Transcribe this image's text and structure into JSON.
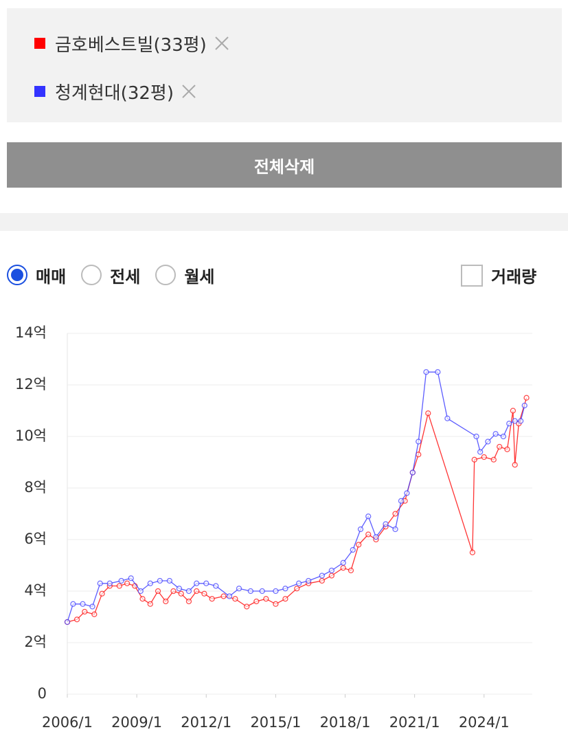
{
  "delete_all_button": "전체삭제",
  "trade_types": [
    {
      "label": "매매",
      "checked": true
    },
    {
      "label": "전세",
      "checked": false
    },
    {
      "label": "월세",
      "checked": false
    }
  ],
  "volume_checkbox": {
    "label": "거래량",
    "checked": false
  },
  "chart_data": {
    "type": "line",
    "xlim": [
      "2006-01",
      "2026-02"
    ],
    "xticks": [
      {
        "value": "2006-01",
        "label": "2006/1"
      },
      {
        "value": "2009-01",
        "label": "2009/1"
      },
      {
        "value": "2012-01",
        "label": "2012/1"
      },
      {
        "value": "2015-01",
        "label": "2015/1"
      },
      {
        "value": "2018-01",
        "label": "2018/1"
      },
      {
        "value": "2021-01",
        "label": "2021/1"
      },
      {
        "value": "2024-01",
        "label": "2024/1"
      }
    ],
    "ylim": [
      0,
      14
    ],
    "yticks": [
      0,
      {
        "value": 2,
        "label": "2억"
      },
      {
        "value": 4,
        "label": "4억"
      },
      {
        "value": 6,
        "label": "6억"
      },
      {
        "value": 8,
        "label": "8억"
      },
      {
        "value": 10,
        "label": "10억"
      },
      {
        "value": 12,
        "label": "12억"
      },
      {
        "value": 14,
        "label": "14억"
      }
    ],
    "grid": true,
    "series": [
      {
        "name": "금호베스트빌(33평)",
        "color": "#ff0000",
        "x": [
          "2006-01",
          "2006-06",
          "2006-10",
          "2007-03",
          "2007-07",
          "2007-11",
          "2008-04",
          "2008-08",
          "2008-12",
          "2009-04",
          "2009-08",
          "2009-12",
          "2010-04",
          "2010-08",
          "2010-12",
          "2011-04",
          "2011-08",
          "2011-12",
          "2012-04",
          "2012-10",
          "2013-04",
          "2013-10",
          "2014-03",
          "2014-08",
          "2015-01",
          "2015-06",
          "2015-12",
          "2016-06",
          "2017-01",
          "2017-06",
          "2017-12",
          "2018-04",
          "2018-08",
          "2019-01",
          "2019-05",
          "2019-10",
          "2020-03",
          "2020-08",
          "2020-12",
          "2021-03",
          "2021-08",
          "2023-07",
          "2023-08",
          "2024-01",
          "2024-06",
          "2024-09",
          "2025-01",
          "2025-04",
          "2025-05",
          "2025-07",
          "2025-11"
        ],
        "values": [
          2.8,
          2.9,
          3.2,
          3.1,
          3.9,
          4.2,
          4.2,
          4.3,
          4.2,
          3.7,
          3.5,
          4.0,
          3.6,
          4.0,
          3.9,
          3.6,
          4.0,
          3.9,
          3.7,
          3.8,
          3.7,
          3.4,
          3.6,
          3.7,
          3.5,
          3.7,
          4.1,
          4.3,
          4.4,
          4.6,
          4.9,
          4.8,
          5.8,
          6.2,
          6.0,
          6.5,
          7.0,
          7.5,
          8.6,
          9.3,
          10.9,
          5.5,
          9.1,
          9.2,
          9.1,
          9.6,
          9.5,
          11.0,
          8.9,
          10.5,
          11.5
        ]
      },
      {
        "name": "청계현대(32평)",
        "color": "#3333ff",
        "x": [
          "2006-01",
          "2006-04",
          "2006-09",
          "2007-02",
          "2007-06",
          "2007-11",
          "2008-05",
          "2008-10",
          "2009-03",
          "2009-08",
          "2010-01",
          "2010-06",
          "2010-11",
          "2011-04",
          "2011-08",
          "2012-01",
          "2012-06",
          "2013-01",
          "2013-06",
          "2013-12",
          "2014-06",
          "2015-01",
          "2015-06",
          "2016-01",
          "2016-06",
          "2017-01",
          "2017-06",
          "2017-12",
          "2018-05",
          "2018-09",
          "2019-01",
          "2019-05",
          "2019-10",
          "2020-03",
          "2020-06",
          "2020-09",
          "2020-12",
          "2021-03",
          "2021-07",
          "2022-01",
          "2022-06",
          "2023-09",
          "2023-11",
          "2024-03",
          "2024-07",
          "2024-11",
          "2025-02",
          "2025-05",
          "2025-08",
          "2025-10"
        ],
        "values": [
          2.8,
          3.5,
          3.5,
          3.4,
          4.3,
          4.3,
          4.4,
          4.5,
          4.0,
          4.3,
          4.4,
          4.4,
          4.1,
          4.0,
          4.3,
          4.3,
          4.2,
          3.8,
          4.1,
          4.0,
          4.0,
          4.0,
          4.1,
          4.3,
          4.4,
          4.6,
          4.8,
          5.1,
          5.6,
          6.4,
          6.9,
          6.1,
          6.6,
          6.4,
          7.5,
          7.8,
          8.6,
          9.8,
          12.5,
          12.5,
          10.7,
          10.0,
          9.4,
          9.8,
          10.1,
          10.0,
          10.5,
          10.6,
          10.6,
          11.2
        ]
      }
    ]
  }
}
